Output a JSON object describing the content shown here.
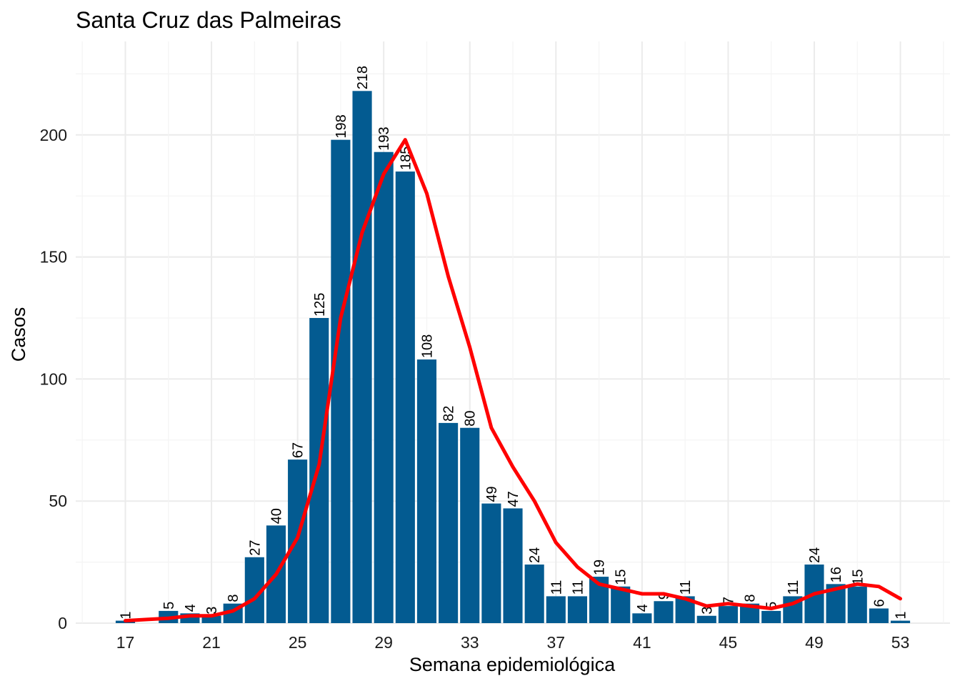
{
  "chart_data": {
    "type": "bar",
    "title": "Santa Cruz das Palmeiras",
    "xlabel": "Semana epidemiológica",
    "ylabel": "Casos",
    "xlim": [
      17,
      53
    ],
    "ylim": [
      0,
      218
    ],
    "x_ticks": [
      17,
      21,
      25,
      29,
      33,
      37,
      41,
      45,
      49,
      53
    ],
    "y_ticks": [
      0,
      50,
      100,
      150,
      200
    ],
    "grid": true,
    "bar_color": "#035b91",
    "line_color": "#ff0000",
    "series": [
      {
        "kind": "bar",
        "points": [
          {
            "week": 17,
            "value": 1
          },
          {
            "week": 19,
            "value": 5
          },
          {
            "week": 20,
            "value": 4
          },
          {
            "week": 21,
            "value": 3
          },
          {
            "week": 22,
            "value": 8
          },
          {
            "week": 23,
            "value": 27
          },
          {
            "week": 24,
            "value": 40
          },
          {
            "week": 25,
            "value": 67
          },
          {
            "week": 26,
            "value": 125
          },
          {
            "week": 27,
            "value": 198
          },
          {
            "week": 28,
            "value": 218
          },
          {
            "week": 29,
            "value": 193
          },
          {
            "week": 30,
            "value": 185
          },
          {
            "week": 31,
            "value": 108
          },
          {
            "week": 32,
            "value": 82
          },
          {
            "week": 33,
            "value": 80
          },
          {
            "week": 34,
            "value": 49
          },
          {
            "week": 35,
            "value": 47
          },
          {
            "week": 36,
            "value": 24
          },
          {
            "week": 37,
            "value": 11
          },
          {
            "week": 38,
            "value": 11
          },
          {
            "week": 39,
            "value": 19
          },
          {
            "week": 40,
            "value": 15
          },
          {
            "week": 41,
            "value": 4
          },
          {
            "week": 42,
            "value": 9
          },
          {
            "week": 43,
            "value": 11
          },
          {
            "week": 44,
            "value": 3
          },
          {
            "week": 45,
            "value": 7
          },
          {
            "week": 46,
            "value": 8
          },
          {
            "week": 47,
            "value": 5
          },
          {
            "week": 48,
            "value": 11
          },
          {
            "week": 49,
            "value": 24
          },
          {
            "week": 50,
            "value": 16
          },
          {
            "week": 51,
            "value": 15
          },
          {
            "week": 52,
            "value": 6
          },
          {
            "week": 53,
            "value": 1
          }
        ]
      },
      {
        "kind": "line",
        "x": [
          17,
          18,
          19,
          20,
          21,
          22,
          23,
          24,
          25,
          26,
          27,
          28,
          29,
          30,
          31,
          32,
          33,
          34,
          35,
          36,
          37,
          38,
          39,
          40,
          41,
          42,
          43,
          44,
          45,
          46,
          47,
          48,
          49,
          50,
          51,
          52,
          53
        ],
        "y": [
          1,
          1.5,
          2,
          3,
          3,
          5,
          10,
          20,
          35,
          65,
          125,
          160,
          184,
          198,
          176,
          142,
          113,
          80,
          64,
          50,
          33,
          23,
          16,
          14,
          12,
          12,
          10,
          7,
          8,
          7,
          6,
          8,
          12,
          14,
          16,
          15,
          10
        ]
      }
    ]
  }
}
